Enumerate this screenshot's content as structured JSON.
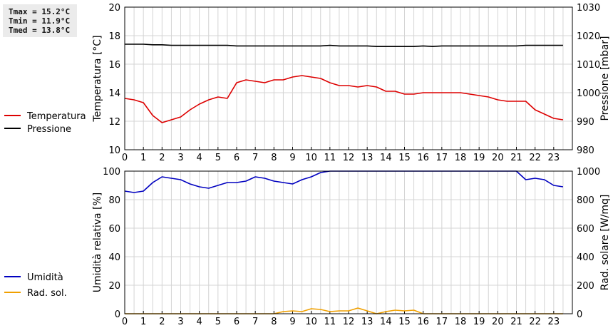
{
  "stats": {
    "tmax": "Tmax = 15.2°C",
    "tmin": "Tmin = 11.9°C",
    "tmed": "Tmed = 13.8°C"
  },
  "colors": {
    "temperature": "#dd0000",
    "pressure": "#000000",
    "humidity": "#0000c0",
    "radiation": "#f0a000",
    "grid": "#d4d4d4"
  },
  "chart_data": [
    {
      "type": "line",
      "ylabel": "Temperatura [°C]",
      "y2label": "Pressione [mbar]",
      "xlim": [
        0,
        24
      ],
      "xticks": [
        "0",
        "1",
        "2",
        "3",
        "4",
        "5",
        "6",
        "7",
        "8",
        "9",
        "10",
        "11",
        "12",
        "13",
        "14",
        "15",
        "16",
        "17",
        "18",
        "19",
        "20",
        "21",
        "22",
        "23"
      ],
      "ylim": [
        10,
        20
      ],
      "yticks": [
        "10",
        "12",
        "14",
        "16",
        "18",
        "20"
      ],
      "y2lim": [
        980,
        1030
      ],
      "y2ticks": [
        "980",
        "990",
        "1000",
        "1010",
        "1020",
        "1030"
      ],
      "grid": true,
      "legend_position": "left",
      "series": [
        {
          "name": "Temperatura",
          "axis": "left",
          "color": "#dd0000",
          "x": [
            0,
            0.5,
            1,
            1.5,
            2,
            2.5,
            3,
            3.5,
            4,
            4.5,
            5,
            5.5,
            6,
            6.5,
            7,
            7.5,
            8,
            8.5,
            9,
            9.5,
            10,
            10.5,
            11,
            11.5,
            12,
            12.5,
            13,
            13.5,
            14,
            14.5,
            15,
            15.5,
            16,
            16.5,
            17,
            17.5,
            18,
            18.5,
            19,
            19.5,
            20,
            20.5,
            21,
            21.5,
            22,
            22.5,
            23,
            23.5
          ],
          "values": [
            13.6,
            13.5,
            13.3,
            12.4,
            11.9,
            12.1,
            12.3,
            12.8,
            13.2,
            13.5,
            13.7,
            13.6,
            14.7,
            14.9,
            14.8,
            14.7,
            14.9,
            14.9,
            15.1,
            15.2,
            15.1,
            15.0,
            14.7,
            14.5,
            14.5,
            14.4,
            14.5,
            14.4,
            14.1,
            14.1,
            13.9,
            13.9,
            14.0,
            14.0,
            14.0,
            14.0,
            14.0,
            13.9,
            13.8,
            13.7,
            13.5,
            13.4,
            13.4,
            13.4,
            12.8,
            12.5,
            12.2,
            12.1
          ]
        },
        {
          "name": "Pressione",
          "axis": "right",
          "color": "#000000",
          "x": [
            0,
            1,
            1.5,
            2,
            2.5,
            5.5,
            6,
            10.5,
            11,
            11.5,
            13,
            13.5,
            15.5,
            16,
            16.5,
            17,
            21,
            21.5,
            23.5
          ],
          "values": [
            1017,
            1017,
            1016.8,
            1016.8,
            1016.6,
            1016.6,
            1016.4,
            1016.4,
            1016.6,
            1016.4,
            1016.4,
            1016.2,
            1016.2,
            1016.4,
            1016.2,
            1016.4,
            1016.4,
            1016.6,
            1016.6
          ]
        }
      ]
    },
    {
      "type": "line",
      "ylabel": "Umidità relativa [%]",
      "y2label": "Rad. solare [W/mq]",
      "xlim": [
        0,
        24
      ],
      "xticks": [
        "0",
        "1",
        "2",
        "3",
        "4",
        "5",
        "6",
        "7",
        "8",
        "9",
        "10",
        "11",
        "12",
        "13",
        "14",
        "15",
        "16",
        "17",
        "18",
        "19",
        "20",
        "21",
        "22",
        "23"
      ],
      "ylim": [
        0,
        100
      ],
      "yticks": [
        "0",
        "20",
        "40",
        "60",
        "80",
        "100"
      ],
      "y2lim": [
        0,
        1000
      ],
      "y2ticks": [
        "0",
        "200",
        "400",
        "600",
        "800",
        "1000"
      ],
      "grid": true,
      "legend_position": "left",
      "series": [
        {
          "name": "Umidità",
          "axis": "left",
          "color": "#0000c0",
          "x": [
            0,
            0.5,
            1,
            1.5,
            2,
            2.5,
            3,
            3.5,
            4,
            4.5,
            5,
            5.5,
            6,
            6.5,
            7,
            7.5,
            8,
            8.5,
            9,
            9.5,
            10,
            10.5,
            11,
            11.5,
            12,
            21,
            21.5,
            22,
            22.5,
            23,
            23.5
          ],
          "values": [
            86,
            85,
            86,
            92,
            96,
            95,
            94,
            91,
            89,
            88,
            90,
            92,
            92,
            93,
            96,
            95,
            93,
            92,
            91,
            94,
            96,
            99,
            100,
            100,
            100,
            100,
            94,
            95,
            94,
            90,
            89
          ]
        },
        {
          "name": "Rad. sol.",
          "axis": "right",
          "color": "#f0a000",
          "x": [
            0,
            8,
            8.5,
            9,
            9.5,
            10,
            10.5,
            11,
            11.5,
            12,
            12.5,
            13,
            13.5,
            14,
            14.5,
            15,
            15.5,
            16,
            23.5
          ],
          "values": [
            0,
            0,
            15,
            20,
            15,
            35,
            30,
            15,
            20,
            20,
            40,
            20,
            0,
            15,
            25,
            20,
            25,
            0,
            0
          ]
        }
      ]
    }
  ]
}
